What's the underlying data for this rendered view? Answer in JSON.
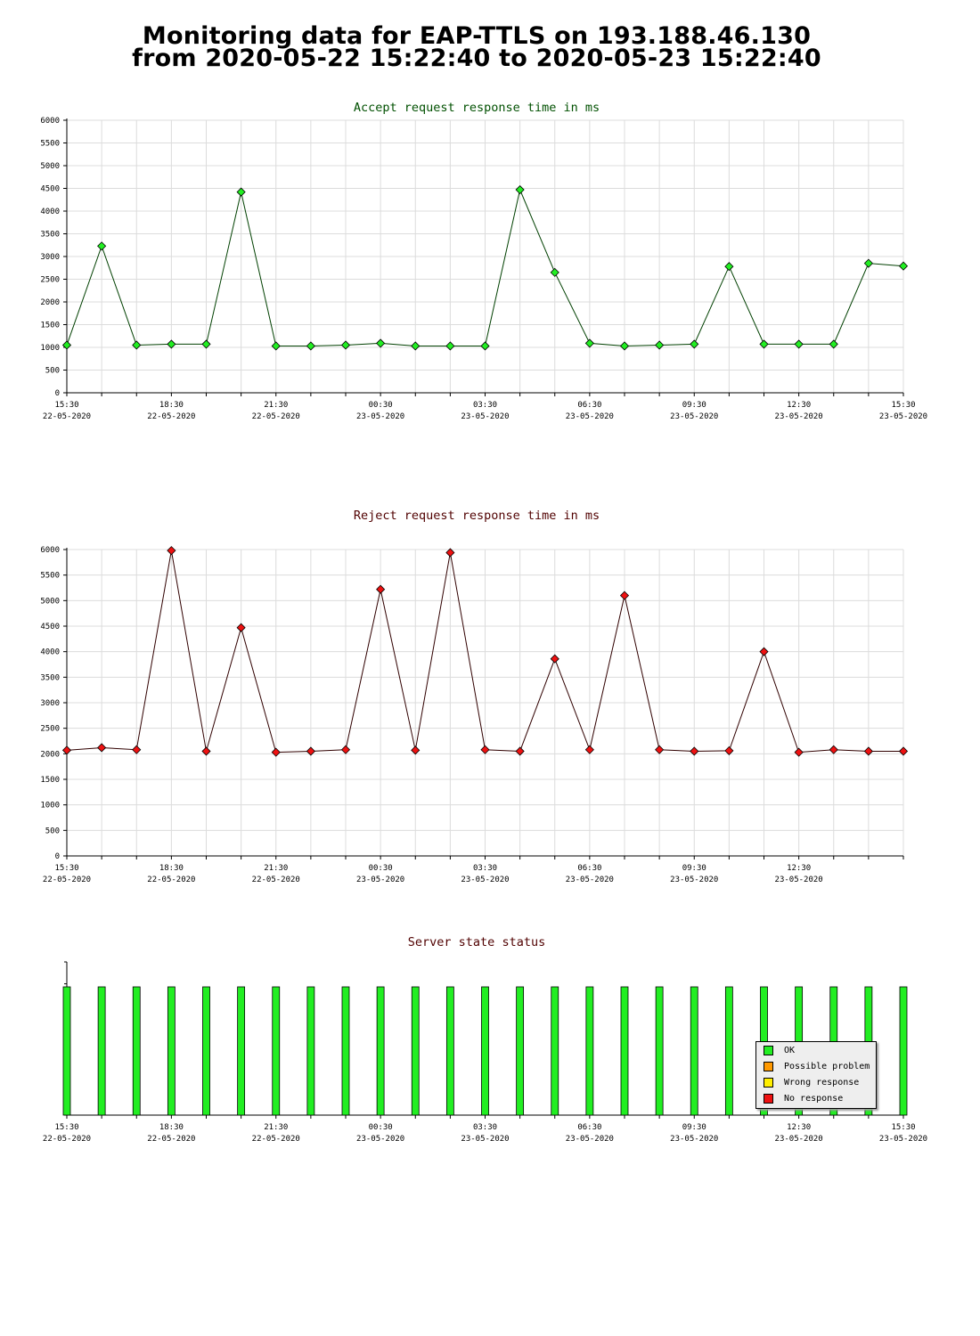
{
  "page": {
    "title_line1": "Monitoring data for EAP-TTLS on 193.188.46.130",
    "title_line2": "from 2020-05-22 15:22:40 to 2020-05-23 15:22:40"
  },
  "chart_data": [
    {
      "type": "line",
      "title": "Accept request response time in ms",
      "title_color": "#005000",
      "line_color": "#004000",
      "marker_color": "#22ee22",
      "ylim": [
        0,
        6000
      ],
      "yticks": [
        0,
        500,
        1000,
        1500,
        2000,
        2500,
        3000,
        3500,
        4000,
        4500,
        5000,
        5500,
        6000
      ],
      "grid": true,
      "xticks": [
        {
          "time": "15:30",
          "date": "22-05-2020"
        },
        {
          "time": "18:30",
          "date": "22-05-2020"
        },
        {
          "time": "21:30",
          "date": "22-05-2020"
        },
        {
          "time": "00:30",
          "date": "23-05-2020"
        },
        {
          "time": "03:30",
          "date": "23-05-2020"
        },
        {
          "time": "06:30",
          "date": "23-05-2020"
        },
        {
          "time": "09:30",
          "date": "23-05-2020"
        },
        {
          "time": "12:30",
          "date": "23-05-2020"
        },
        {
          "time": "15:30",
          "date": "23-05-2020"
        }
      ],
      "x": [
        "15:30",
        "16:30",
        "17:30",
        "18:30",
        "19:30",
        "20:30",
        "21:30",
        "22:30",
        "23:30",
        "00:30",
        "01:30",
        "02:30",
        "03:30",
        "04:30",
        "05:30",
        "06:30",
        "07:30",
        "08:30",
        "09:30",
        "10:30",
        "11:30",
        "12:30",
        "13:30",
        "14:30",
        "15:30"
      ],
      "values": [
        1050,
        3230,
        1050,
        1070,
        1070,
        4420,
        1030,
        1030,
        1050,
        1090,
        1030,
        1030,
        1030,
        4470,
        2650,
        1090,
        1030,
        1050,
        1070,
        2780,
        1070,
        1070,
        1070,
        2850,
        2790
      ]
    },
    {
      "type": "line",
      "title": "Reject request response time in ms",
      "title_color": "#500000",
      "line_color": "#300000",
      "marker_color": "#ee1111",
      "ylim": [
        0,
        6000
      ],
      "yticks": [
        0,
        500,
        1000,
        1500,
        2000,
        2500,
        3000,
        3500,
        4000,
        4500,
        5000,
        5500,
        6000
      ],
      "grid": true,
      "xticks": [
        {
          "time": "15:30",
          "date": "22-05-2020"
        },
        {
          "time": "18:30",
          "date": "22-05-2020"
        },
        {
          "time": "21:30",
          "date": "22-05-2020"
        },
        {
          "time": "00:30",
          "date": "23-05-2020"
        },
        {
          "time": "03:30",
          "date": "23-05-2020"
        },
        {
          "time": "06:30",
          "date": "23-05-2020"
        },
        {
          "time": "09:30",
          "date": "23-05-2020"
        },
        {
          "time": "12:30",
          "date": "23-05-2020"
        }
      ],
      "x": [
        "15:30",
        "16:30",
        "17:30",
        "18:30",
        "19:30",
        "20:30",
        "21:30",
        "22:30",
        "23:30",
        "00:30",
        "01:30",
        "02:30",
        "03:30",
        "04:30",
        "05:30",
        "06:30",
        "07:30",
        "08:30",
        "09:30",
        "10:30",
        "11:30",
        "12:30",
        "13:30",
        "14:30",
        "15:30"
      ],
      "values": [
        2070,
        2120,
        2080,
        5980,
        2050,
        4470,
        2030,
        2050,
        2080,
        5220,
        2070,
        5940,
        2080,
        2050,
        3860,
        2080,
        5100,
        2080,
        2050,
        2060,
        4000,
        2030,
        2080,
        2050,
        2050
      ]
    },
    {
      "type": "bar",
      "title": "Server state status",
      "title_color": "#500000",
      "grid": false,
      "xticks": [
        {
          "time": "15:30",
          "date": "22-05-2020"
        },
        {
          "time": "18:30",
          "date": "22-05-2020"
        },
        {
          "time": "21:30",
          "date": "22-05-2020"
        },
        {
          "time": "00:30",
          "date": "23-05-2020"
        },
        {
          "time": "03:30",
          "date": "23-05-2020"
        },
        {
          "time": "06:30",
          "date": "23-05-2020"
        },
        {
          "time": "09:30",
          "date": "23-05-2020"
        },
        {
          "time": "12:30",
          "date": "23-05-2020"
        },
        {
          "time": "15:30",
          "date": "23-05-2020"
        }
      ],
      "states": [
        "OK",
        "OK",
        "OK",
        "OK",
        "OK",
        "OK",
        "OK",
        "OK",
        "OK",
        "OK",
        "OK",
        "OK",
        "OK",
        "OK",
        "OK",
        "OK",
        "OK",
        "OK",
        "OK",
        "OK",
        "OK",
        "OK",
        "OK",
        "OK",
        "OK"
      ],
      "state_colors": {
        "OK": "#22ee22",
        "Possible problem": "#ff9900",
        "Wrong response": "#ffee00",
        "No response": "#ee1111"
      },
      "legend": {
        "position": "bottom-right",
        "items": [
          {
            "label": "OK",
            "color": "#22ee22"
          },
          {
            "label": "Possible problem",
            "color": "#ff9900"
          },
          {
            "label": "Wrong response",
            "color": "#ffee00"
          },
          {
            "label": "No response",
            "color": "#ee1111"
          }
        ]
      }
    }
  ]
}
